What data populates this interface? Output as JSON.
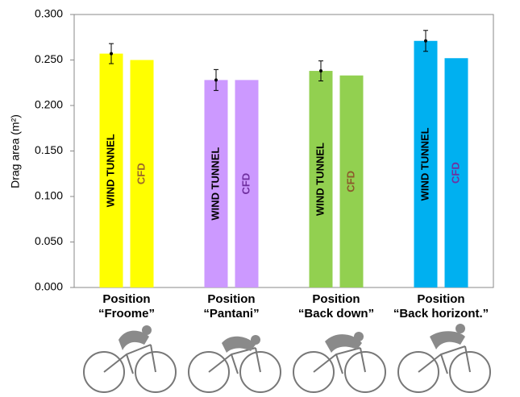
{
  "chart_data": {
    "type": "bar",
    "y_label": "Drag area (m²)",
    "categories": [
      [
        "Position",
        "“Froome”"
      ],
      [
        "Position",
        "“Pantani”"
      ],
      [
        "Position",
        "“Back down”"
      ],
      [
        "Position",
        "“Back horizont.”"
      ]
    ],
    "category_colors": [
      "#ffff00",
      "#cc99ff",
      "#92d050",
      "#00b0f0"
    ],
    "series": [
      {
        "name": "WIND TUNNEL",
        "label_colors": [
          "#000000",
          "#000000",
          "#000000",
          "#000000"
        ],
        "values": [
          0.257,
          0.228,
          0.238,
          0.271
        ],
        "errors": [
          0.011,
          0.0115,
          0.011,
          0.0115
        ]
      },
      {
        "name": "CFD",
        "label_colors": [
          "#9c6a2a",
          "#7030a0",
          "#8b5a2b",
          "#7030a0"
        ],
        "values": [
          0.25,
          0.228,
          0.233,
          0.252
        ]
      }
    ],
    "ylim": [
      0,
      0.3
    ],
    "yticks": [
      {
        "value": 0,
        "label": "0.000"
      },
      {
        "value": 0.05,
        "label": "0.050"
      },
      {
        "value": 0.1,
        "label": "0.100"
      },
      {
        "value": 0.15,
        "label": "0.150"
      },
      {
        "value": 0.2,
        "label": "0.200"
      },
      {
        "value": 0.25,
        "label": "0.250"
      },
      {
        "value": 0.3,
        "label": "0.300"
      }
    ],
    "grid": false
  }
}
